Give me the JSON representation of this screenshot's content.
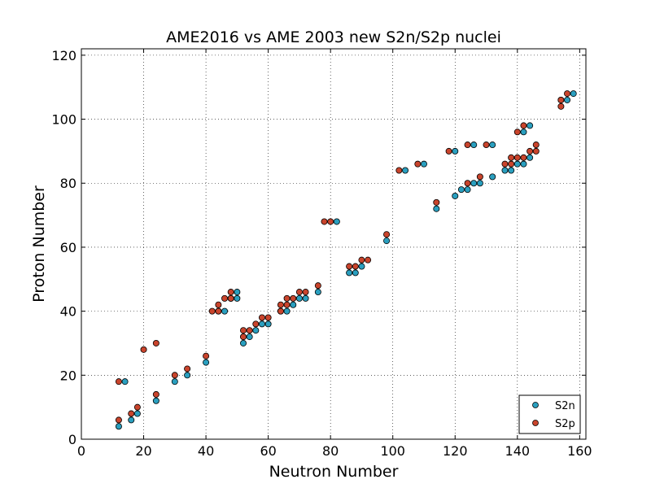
{
  "chart_data": {
    "type": "scatter",
    "title": "AME2016 vs AME 2003 new S2n/S2p nuclei",
    "xlabel": "Neutron Number",
    "ylabel": "Proton Number",
    "xlim": [
      0,
      162
    ],
    "ylim": [
      0,
      122
    ],
    "xticks": [
      0,
      20,
      40,
      60,
      80,
      100,
      120,
      140,
      160
    ],
    "yticks": [
      0,
      20,
      40,
      60,
      80,
      100,
      120
    ],
    "grid": true,
    "legend_position": "bottom-right",
    "series": [
      {
        "name": "S2n",
        "color": "#2a9fbf",
        "points": [
          [
            12,
            4
          ],
          [
            14,
            18
          ],
          [
            16,
            6
          ],
          [
            18,
            8
          ],
          [
            24,
            12
          ],
          [
            30,
            18
          ],
          [
            34,
            20
          ],
          [
            40,
            24
          ],
          [
            44,
            40
          ],
          [
            46,
            40
          ],
          [
            48,
            44
          ],
          [
            50,
            44
          ],
          [
            50,
            46
          ],
          [
            52,
            30
          ],
          [
            52,
            32
          ],
          [
            54,
            32
          ],
          [
            56,
            34
          ],
          [
            58,
            36
          ],
          [
            60,
            36
          ],
          [
            64,
            40
          ],
          [
            66,
            40
          ],
          [
            68,
            42
          ],
          [
            70,
            44
          ],
          [
            72,
            44
          ],
          [
            76,
            46
          ],
          [
            82,
            68
          ],
          [
            86,
            52
          ],
          [
            88,
            52
          ],
          [
            90,
            54
          ],
          [
            98,
            62
          ],
          [
            104,
            84
          ],
          [
            110,
            86
          ],
          [
            114,
            72
          ],
          [
            120,
            76
          ],
          [
            120,
            90
          ],
          [
            122,
            78
          ],
          [
            124,
            78
          ],
          [
            126,
            80
          ],
          [
            126,
            92
          ],
          [
            128,
            80
          ],
          [
            132,
            82
          ],
          [
            132,
            92
          ],
          [
            136,
            84
          ],
          [
            138,
            84
          ],
          [
            140,
            86
          ],
          [
            142,
            86
          ],
          [
            142,
            96
          ],
          [
            144,
            88
          ],
          [
            144,
            98
          ],
          [
            154,
            106
          ],
          [
            156,
            106
          ],
          [
            158,
            108
          ]
        ]
      },
      {
        "name": "S2p",
        "color": "#c9442c",
        "points": [
          [
            12,
            6
          ],
          [
            12,
            18
          ],
          [
            16,
            8
          ],
          [
            18,
            10
          ],
          [
            20,
            28
          ],
          [
            24,
            14
          ],
          [
            24,
            30
          ],
          [
            30,
            20
          ],
          [
            34,
            22
          ],
          [
            40,
            26
          ],
          [
            42,
            40
          ],
          [
            44,
            40
          ],
          [
            44,
            42
          ],
          [
            46,
            44
          ],
          [
            48,
            44
          ],
          [
            48,
            46
          ],
          [
            52,
            32
          ],
          [
            52,
            34
          ],
          [
            54,
            34
          ],
          [
            56,
            36
          ],
          [
            58,
            38
          ],
          [
            60,
            38
          ],
          [
            64,
            40
          ],
          [
            64,
            42
          ],
          [
            66,
            42
          ],
          [
            66,
            44
          ],
          [
            68,
            44
          ],
          [
            70,
            46
          ],
          [
            72,
            46
          ],
          [
            76,
            48
          ],
          [
            78,
            68
          ],
          [
            80,
            68
          ],
          [
            86,
            54
          ],
          [
            88,
            54
          ],
          [
            90,
            56
          ],
          [
            92,
            56
          ],
          [
            98,
            64
          ],
          [
            102,
            84
          ],
          [
            108,
            86
          ],
          [
            114,
            74
          ],
          [
            118,
            90
          ],
          [
            124,
            80
          ],
          [
            124,
            92
          ],
          [
            128,
            82
          ],
          [
            130,
            92
          ],
          [
            136,
            86
          ],
          [
            138,
            86
          ],
          [
            138,
            88
          ],
          [
            140,
            88
          ],
          [
            140,
            96
          ],
          [
            142,
            88
          ],
          [
            142,
            98
          ],
          [
            144,
            90
          ],
          [
            146,
            90
          ],
          [
            146,
            92
          ],
          [
            154,
            104
          ],
          [
            154,
            106
          ],
          [
            156,
            108
          ]
        ]
      }
    ]
  }
}
